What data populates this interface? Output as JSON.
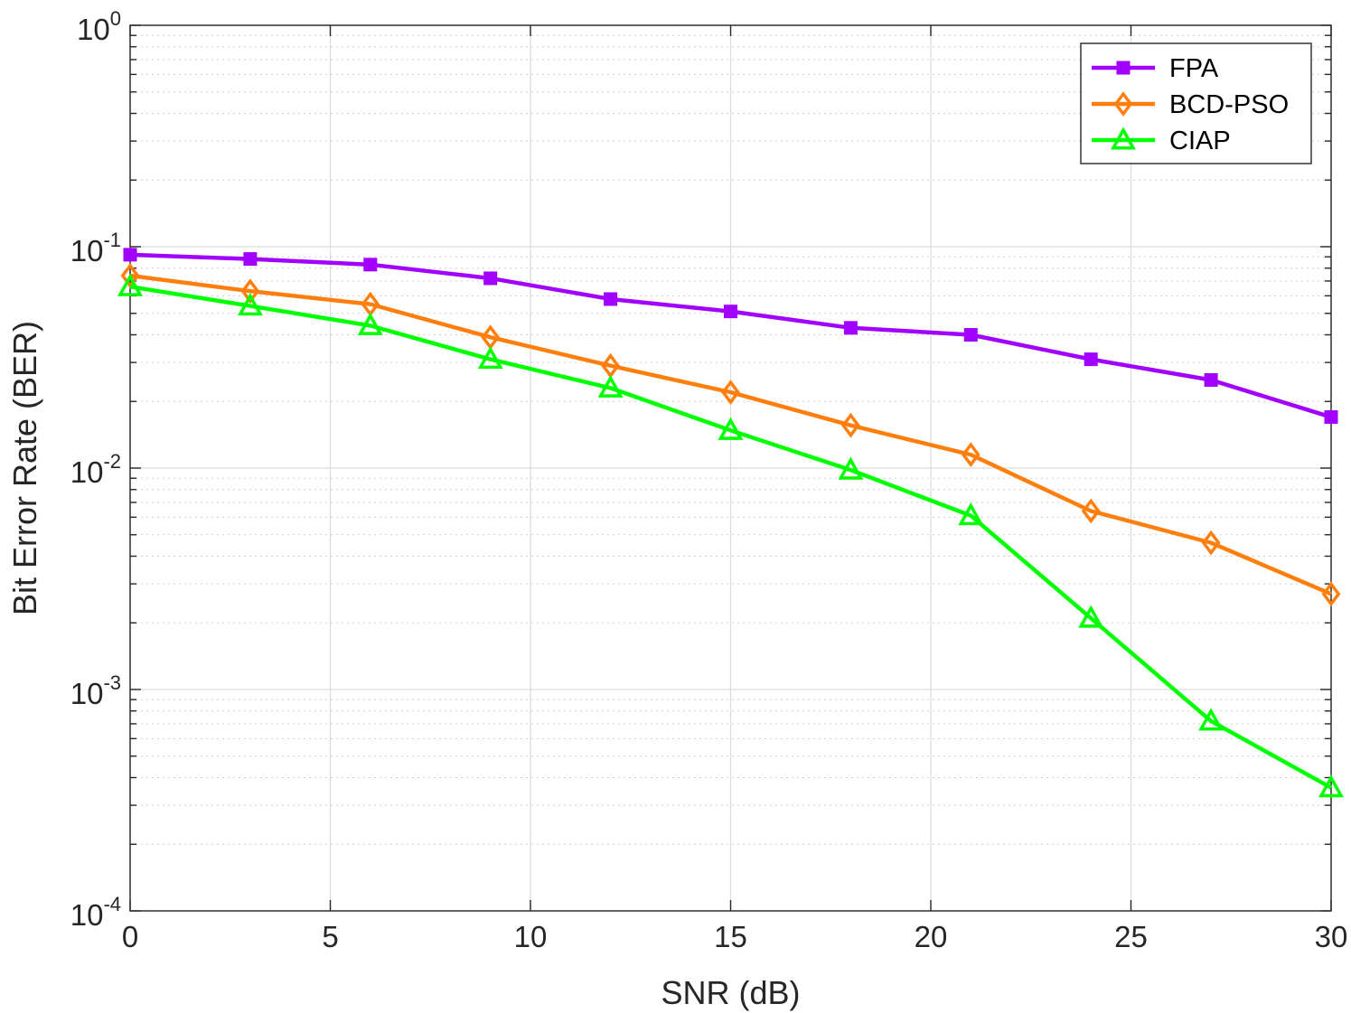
{
  "chart_data": {
    "type": "line",
    "title": "",
    "xlabel": "SNR (dB)",
    "ylabel": "Bit Error Rate (BER)",
    "xlim": [
      0,
      30
    ],
    "ylim": [
      0.0001,
      1
    ],
    "yscale": "log",
    "grid": true,
    "legend_position": "top-right",
    "x": [
      0,
      3,
      6,
      9,
      12,
      15,
      18,
      21,
      24,
      27,
      30
    ],
    "xticks": [
      0,
      5,
      10,
      15,
      20,
      25,
      30
    ],
    "yticks": [
      {
        "base": "10",
        "exp": "0",
        "value": 1
      },
      {
        "base": "10",
        "exp": "-1",
        "value": 0.1
      },
      {
        "base": "10",
        "exp": "-2",
        "value": 0.01
      },
      {
        "base": "10",
        "exp": "-3",
        "value": 0.001
      },
      {
        "base": "10",
        "exp": "-4",
        "value": 0.0001
      }
    ],
    "series": [
      {
        "name": "FPA",
        "color": "#a100ff",
        "marker": "square",
        "values": [
          0.092,
          0.088,
          0.083,
          0.072,
          0.058,
          0.051,
          0.043,
          0.04,
          0.031,
          0.025,
          0.017
        ]
      },
      {
        "name": "BCD-PSO",
        "color": "#ff7f0e",
        "marker": "diamond",
        "values": [
          0.074,
          0.063,
          0.055,
          0.039,
          0.029,
          0.022,
          0.0156,
          0.0115,
          0.0064,
          0.0046,
          0.0027
        ]
      },
      {
        "name": "CIAP",
        "color": "#00ff00",
        "marker": "triangle",
        "values": [
          0.066,
          0.054,
          0.044,
          0.031,
          0.023,
          0.0148,
          0.0098,
          0.0061,
          0.0021,
          0.00072,
          0.00036
        ]
      }
    ]
  }
}
